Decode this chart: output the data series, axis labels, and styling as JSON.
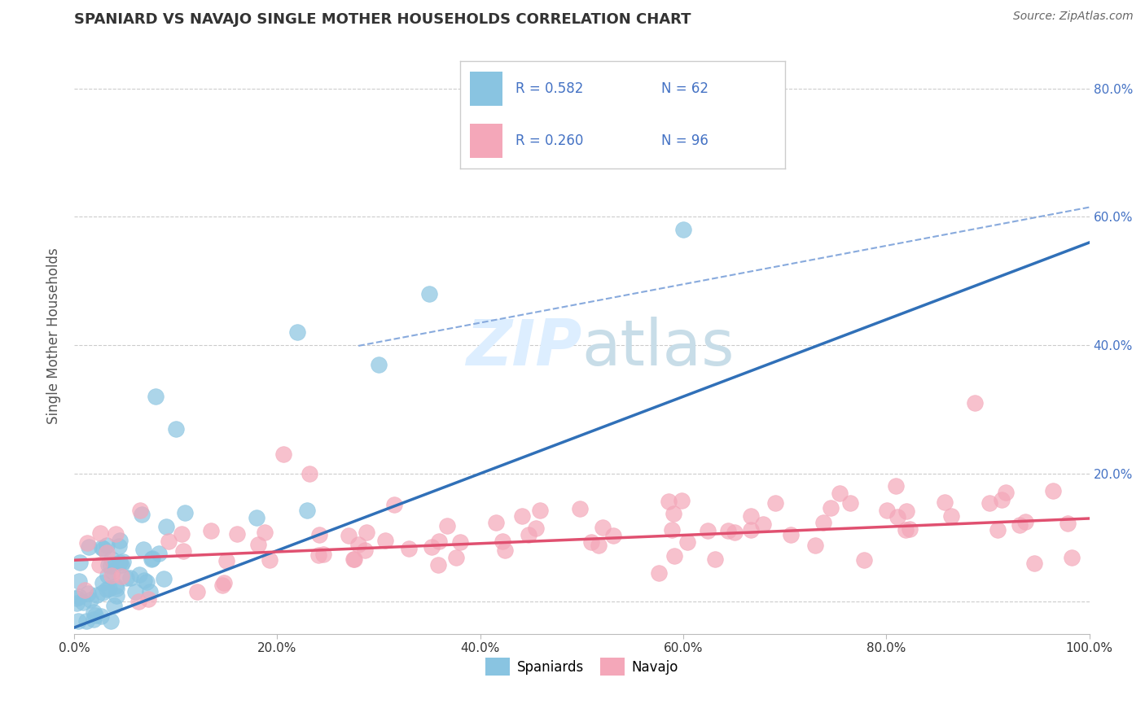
{
  "title": "SPANIARD VS NAVAJO SINGLE MOTHER HOUSEHOLDS CORRELATION CHART",
  "source": "Source: ZipAtlas.com",
  "ylabel": "Single Mother Households",
  "xlim": [
    0,
    1.0
  ],
  "ylim": [
    -0.05,
    0.88
  ],
  "xtick_vals": [
    0.0,
    0.2,
    0.4,
    0.6,
    0.8,
    1.0
  ],
  "ytick_vals": [
    0.0,
    0.2,
    0.4,
    0.6,
    0.8
  ],
  "ytick_labels_right": [
    "",
    "20.0%",
    "40.0%",
    "60.0%",
    "80.0%"
  ],
  "xtick_labels": [
    "0.0%",
    "20.0%",
    "40.0%",
    "60.0%",
    "80.0%",
    "100.0%"
  ],
  "spaniard_color": "#89c4e1",
  "navajo_color": "#f4a7b9",
  "spaniard_line_color": "#3070b8",
  "navajo_line_color": "#e05070",
  "dashed_line_color": "#88aadd",
  "r_spaniard": 0.582,
  "n_spaniard": 62,
  "r_navajo": 0.26,
  "n_navajo": 96,
  "legend_text_color": "#4472c4",
  "background_color": "#ffffff",
  "grid_color": "#cccccc",
  "title_color": "#333333",
  "source_color": "#666666",
  "ylabel_color": "#555555",
  "tick_label_color": "#333333",
  "right_tick_color": "#4472c4",
  "watermark_color": "#ddeeff"
}
